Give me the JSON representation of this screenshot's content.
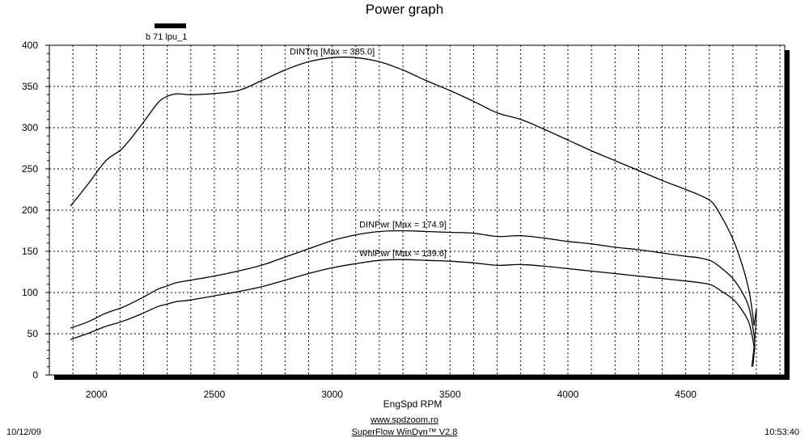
{
  "title": "Power graph",
  "legend": {
    "label": "b 71 lpu_1",
    "color": "#000000"
  },
  "footer": {
    "date": "10/12/09",
    "time": "10:53:40",
    "url": "www.spdzoom.ro",
    "software": "SuperFlow WinDyn™ V2.8"
  },
  "chart_data": {
    "type": "line",
    "title": "Power graph",
    "xlabel": "EngSpd  RPM",
    "ylabel": "",
    "xlim": [
      1800,
      4920
    ],
    "ylim": [
      0,
      400
    ],
    "xticks": [
      2000,
      2500,
      3000,
      3500,
      4000,
      4500
    ],
    "yticks": [
      0,
      50,
      100,
      150,
      200,
      250,
      300,
      350,
      400
    ],
    "grid": true,
    "series": [
      {
        "name": "DINTrq",
        "annotation": "DINTrq [Max = 385.0]",
        "x": [
          1890,
          1960,
          2040,
          2110,
          2190,
          2260,
          2300,
          2340,
          2400,
          2480,
          2600,
          2700,
          2800,
          2900,
          3000,
          3100,
          3200,
          3300,
          3400,
          3500,
          3600,
          3700,
          3800,
          3900,
          4000,
          4100,
          4200,
          4300,
          4400,
          4500,
          4560,
          4610,
          4650,
          4700,
          4740,
          4770,
          4790
        ],
        "values": [
          205,
          230,
          260,
          275,
          303,
          330,
          338,
          341,
          340,
          341,
          345,
          357,
          370,
          380,
          385,
          385,
          380,
          370,
          357,
          345,
          332,
          318,
          310,
          298,
          285,
          272,
          260,
          248,
          236,
          225,
          218,
          210,
          193,
          165,
          133,
          100,
          60
        ]
      },
      {
        "name": "DINPwr",
        "annotation": "DINPwr [Max = 174.9]",
        "x": [
          1890,
          1960,
          2040,
          2110,
          2190,
          2260,
          2300,
          2340,
          2400,
          2500,
          2600,
          2700,
          2800,
          2900,
          3000,
          3100,
          3200,
          3300,
          3400,
          3500,
          3600,
          3700,
          3800,
          3900,
          4000,
          4100,
          4200,
          4300,
          4400,
          4500,
          4560,
          4610,
          4650,
          4700,
          4740,
          4770,
          4790
        ],
        "values": [
          57,
          64,
          75,
          82,
          93,
          104,
          108,
          112,
          115,
          120,
          126,
          133,
          143,
          153,
          163,
          170,
          174,
          175,
          174,
          173,
          172,
          168,
          169,
          166,
          162,
          159,
          155,
          152,
          148,
          144,
          142,
          138,
          130,
          117,
          100,
          80,
          48
        ]
      },
      {
        "name": "WhlPwr",
        "annotation": "WhlPwr [Max = 139.6]",
        "x": [
          1890,
          1960,
          2040,
          2110,
          2190,
          2260,
          2300,
          2340,
          2400,
          2500,
          2600,
          2700,
          2800,
          2900,
          3000,
          3100,
          3200,
          3300,
          3400,
          3500,
          3600,
          3700,
          3800,
          3900,
          4000,
          4100,
          4200,
          4300,
          4400,
          4500,
          4560,
          4610,
          4650,
          4700,
          4740,
          4770,
          4790
        ],
        "values": [
          43,
          50,
          59,
          65,
          74,
          83,
          86,
          89,
          91,
          96,
          101,
          107,
          115,
          123,
          130,
          135,
          139,
          140,
          139,
          138,
          136,
          133,
          134,
          132,
          129,
          126,
          123,
          120,
          117,
          114,
          112,
          109,
          102,
          92,
          78,
          62,
          35
        ]
      }
    ],
    "rundown": [
      {
        "series": "DINTrq",
        "x": [
          4790,
          4800,
          4795,
          4790,
          4785
        ],
        "values": [
          60,
          80,
          50,
          30,
          15
        ]
      },
      {
        "series": "DINPwr",
        "x": [
          4790,
          4793,
          4789,
          4785
        ],
        "values": [
          48,
          35,
          22,
          10
        ]
      },
      {
        "series": "WhlPwr",
        "x": [
          4790,
          4785,
          4780
        ],
        "values": [
          35,
          22,
          10
        ]
      }
    ]
  }
}
